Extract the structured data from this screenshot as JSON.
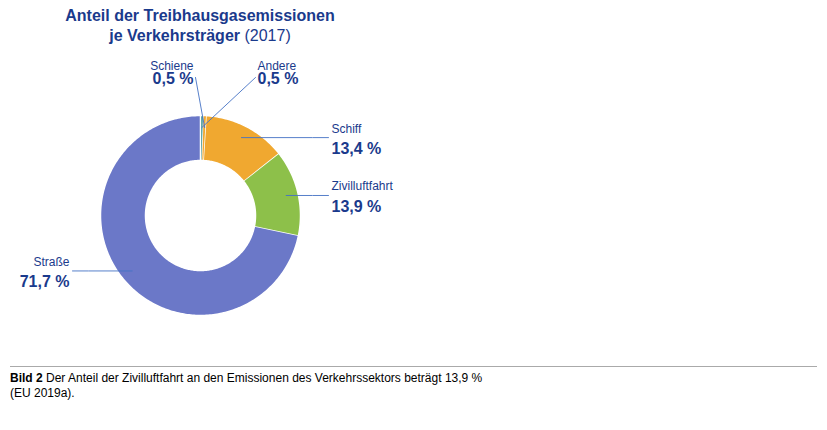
{
  "chart_data": {
    "type": "pie",
    "title": "Anteil der Treibhausgasemissionen",
    "subtitle": "je Verkehrsträger (2017)",
    "categories": [
      "Andere",
      "Schiene",
      "Schiff",
      "Zivilluftfahrt",
      "Straße"
    ],
    "values": [
      0.5,
      0.5,
      13.4,
      13.9,
      71.7
    ],
    "value_labels": [
      "0,5 %",
      "0,5 %",
      "13,4 %",
      "13,9 %",
      "71,7 %"
    ],
    "colors": [
      "#2e8b8b",
      "#f0a830",
      "#f0a830",
      "#8dc04a",
      "#6b78c8"
    ],
    "data_labels": true,
    "caption_label": "Bild 2",
    "caption": "Der Anteil der Zivilluftfahrt an den Emissionen des Verkehrssektors beträgt 13,9 %\n(EU 2019a)."
  }
}
